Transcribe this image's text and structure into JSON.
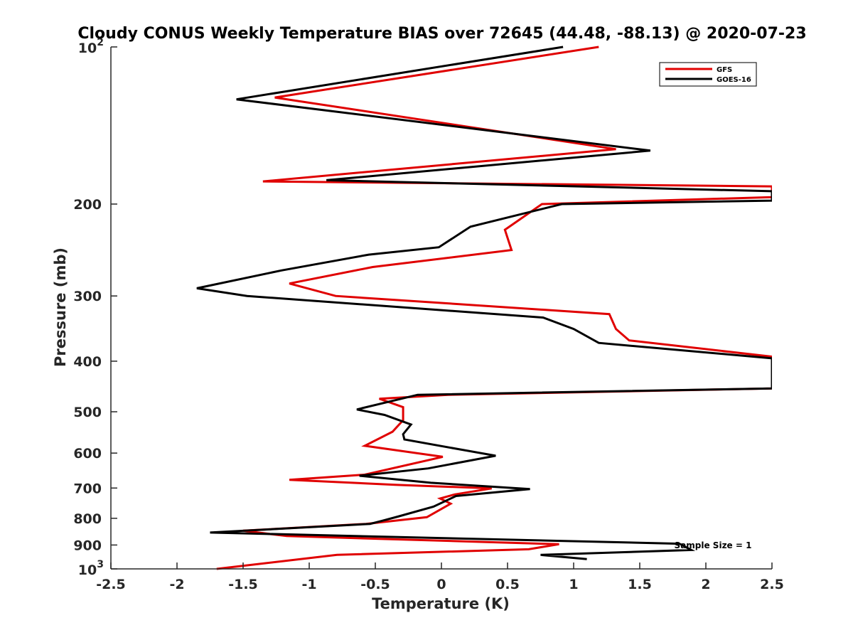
{
  "chart_data": {
    "type": "line",
    "title": "Cloudy CONUS Weekly Temperature BIAS over 72645 (44.48, -88.13) @ 2020-07-23",
    "xlabel": "Temperature (K)",
    "ylabel": "Pressure (mb)",
    "xlim": [
      -2.5,
      2.5
    ],
    "ylim": [
      100,
      1000
    ],
    "yscale": "log",
    "y_reversed": true,
    "grid": false,
    "legend_position": "top-right",
    "x_ticks": [
      "-2.5",
      "-2",
      "-1.5",
      "-1",
      "-0.5",
      "0",
      "0.5",
      "1",
      "1.5",
      "2",
      "2.5"
    ],
    "y_ticks": [
      {
        "value": 100,
        "base": "10",
        "exp": "2"
      },
      {
        "value": 200,
        "label": "200"
      },
      {
        "value": 300,
        "label": "300"
      },
      {
        "value": 400,
        "label": "400"
      },
      {
        "value": 500,
        "label": "500"
      },
      {
        "value": 600,
        "label": "600"
      },
      {
        "value": 700,
        "label": "700"
      },
      {
        "value": 800,
        "label": "800"
      },
      {
        "value": 900,
        "label": "900"
      },
      {
        "value": 1000,
        "base": "10",
        "exp": "3"
      }
    ],
    "annotation": "Sample Size = 1",
    "series": [
      {
        "name": "GFS",
        "color": "#e00000",
        "points": [
          [
            1.19,
            100
          ],
          [
            -1.26,
            125
          ],
          [
            1.32,
            157
          ],
          [
            -1.35,
            181
          ],
          [
            2.5,
            185
          ],
          [
            2.5,
            194
          ],
          [
            0.76,
            200
          ],
          [
            0.48,
            224
          ],
          [
            0.53,
            245
          ],
          [
            -0.52,
            264
          ],
          [
            -1.15,
            284
          ],
          [
            -0.8,
            300
          ],
          [
            1.27,
            325
          ],
          [
            1.32,
            347
          ],
          [
            1.42,
            365
          ],
          [
            2.5,
            392
          ],
          [
            2.5,
            451
          ],
          [
            0.05,
            464
          ],
          [
            -0.47,
            472
          ],
          [
            -0.29,
            490
          ],
          [
            -0.29,
            519
          ],
          [
            -0.37,
            546
          ],
          [
            -0.58,
            581
          ],
          [
            0.01,
            610
          ],
          [
            -0.58,
            660
          ],
          [
            -1.15,
            675
          ],
          [
            -0.35,
            690
          ],
          [
            0.38,
            701
          ],
          [
            0.1,
            720
          ],
          [
            -0.01,
            733
          ],
          [
            0.07,
            750
          ],
          [
            -0.11,
            796
          ],
          [
            -0.57,
            820
          ],
          [
            -1.5,
            845
          ],
          [
            -1.17,
            865
          ],
          [
            0.89,
            897
          ],
          [
            0.66,
            917
          ],
          [
            -0.79,
            940
          ],
          [
            -1.7,
            1000
          ]
        ]
      },
      {
        "name": "GOES-16",
        "color": "#000000",
        "points": [
          [
            0.92,
            100
          ],
          [
            -1.55,
            126
          ],
          [
            1.58,
            158
          ],
          [
            -0.87,
            180
          ],
          [
            2.5,
            189
          ],
          [
            2.5,
            197
          ],
          [
            0.91,
            200
          ],
          [
            0.22,
            221
          ],
          [
            -0.02,
            242
          ],
          [
            -0.55,
            250
          ],
          [
            -1.21,
            268
          ],
          [
            -1.85,
            290
          ],
          [
            -1.47,
            300
          ],
          [
            0.77,
            330
          ],
          [
            1.0,
            347
          ],
          [
            1.19,
            369
          ],
          [
            2.5,
            395
          ],
          [
            2.5,
            451
          ],
          [
            -0.18,
            464
          ],
          [
            -0.64,
            495
          ],
          [
            -0.43,
            507
          ],
          [
            -0.23,
            529
          ],
          [
            -0.29,
            552
          ],
          [
            -0.28,
            565
          ],
          [
            0.41,
            607
          ],
          [
            -0.1,
            642
          ],
          [
            -0.62,
            663
          ],
          [
            -0.08,
            684
          ],
          [
            0.67,
            703
          ],
          [
            0.11,
            725
          ],
          [
            -0.06,
            760
          ],
          [
            -0.33,
            794
          ],
          [
            -0.45,
            809
          ],
          [
            -0.54,
            820
          ],
          [
            -1.75,
            852
          ],
          [
            1.8,
            895
          ],
          [
            1.89,
            920
          ],
          [
            0.75,
            940
          ],
          [
            1.1,
            958
          ]
        ]
      }
    ]
  }
}
